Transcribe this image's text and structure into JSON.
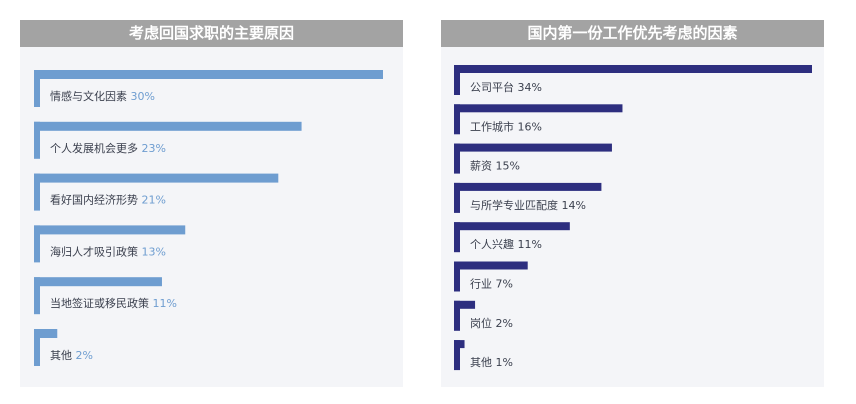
{
  "colors": {
    "title_bg": "#a3a3a3",
    "left_bar": "#6e9dd0",
    "left_pct": "#6e9dd0",
    "right_bar": "#2d2e7f",
    "right_pct": "#3a3f4d",
    "label": "#3a3f4d",
    "panel_bg": "#f4f5f8"
  },
  "chart_data": [
    {
      "type": "bar",
      "orientation": "horizontal",
      "title": "考虑回国求职的主要原因",
      "categories": [
        "情感与文化因素",
        "个人发展机会更多",
        "看好国内经济形势",
        "海归人才吸引政策",
        "当地签证或移民政策",
        "其他"
      ],
      "values": [
        30,
        23,
        21,
        13,
        11,
        2
      ],
      "value_labels": [
        "30%",
        "23%",
        "21%",
        "13%",
        "11%",
        "2%"
      ],
      "xlim": [
        0,
        30
      ],
      "grid": false,
      "legend": "none"
    },
    {
      "type": "bar",
      "orientation": "horizontal",
      "title": "国内第一份工作优先考虑的因素",
      "categories": [
        "公司平台",
        "工作城市",
        "薪资",
        "与所学专业匹配度",
        "个人兴趣",
        "行业",
        "岗位",
        "其他"
      ],
      "values": [
        34,
        16,
        15,
        14,
        11,
        7,
        2,
        1
      ],
      "value_labels": [
        "34%",
        "16%",
        "15%",
        "14%",
        "11%",
        "7%",
        "2%",
        "1%"
      ],
      "xlim": [
        0,
        34
      ],
      "grid": false,
      "legend": "none"
    }
  ]
}
